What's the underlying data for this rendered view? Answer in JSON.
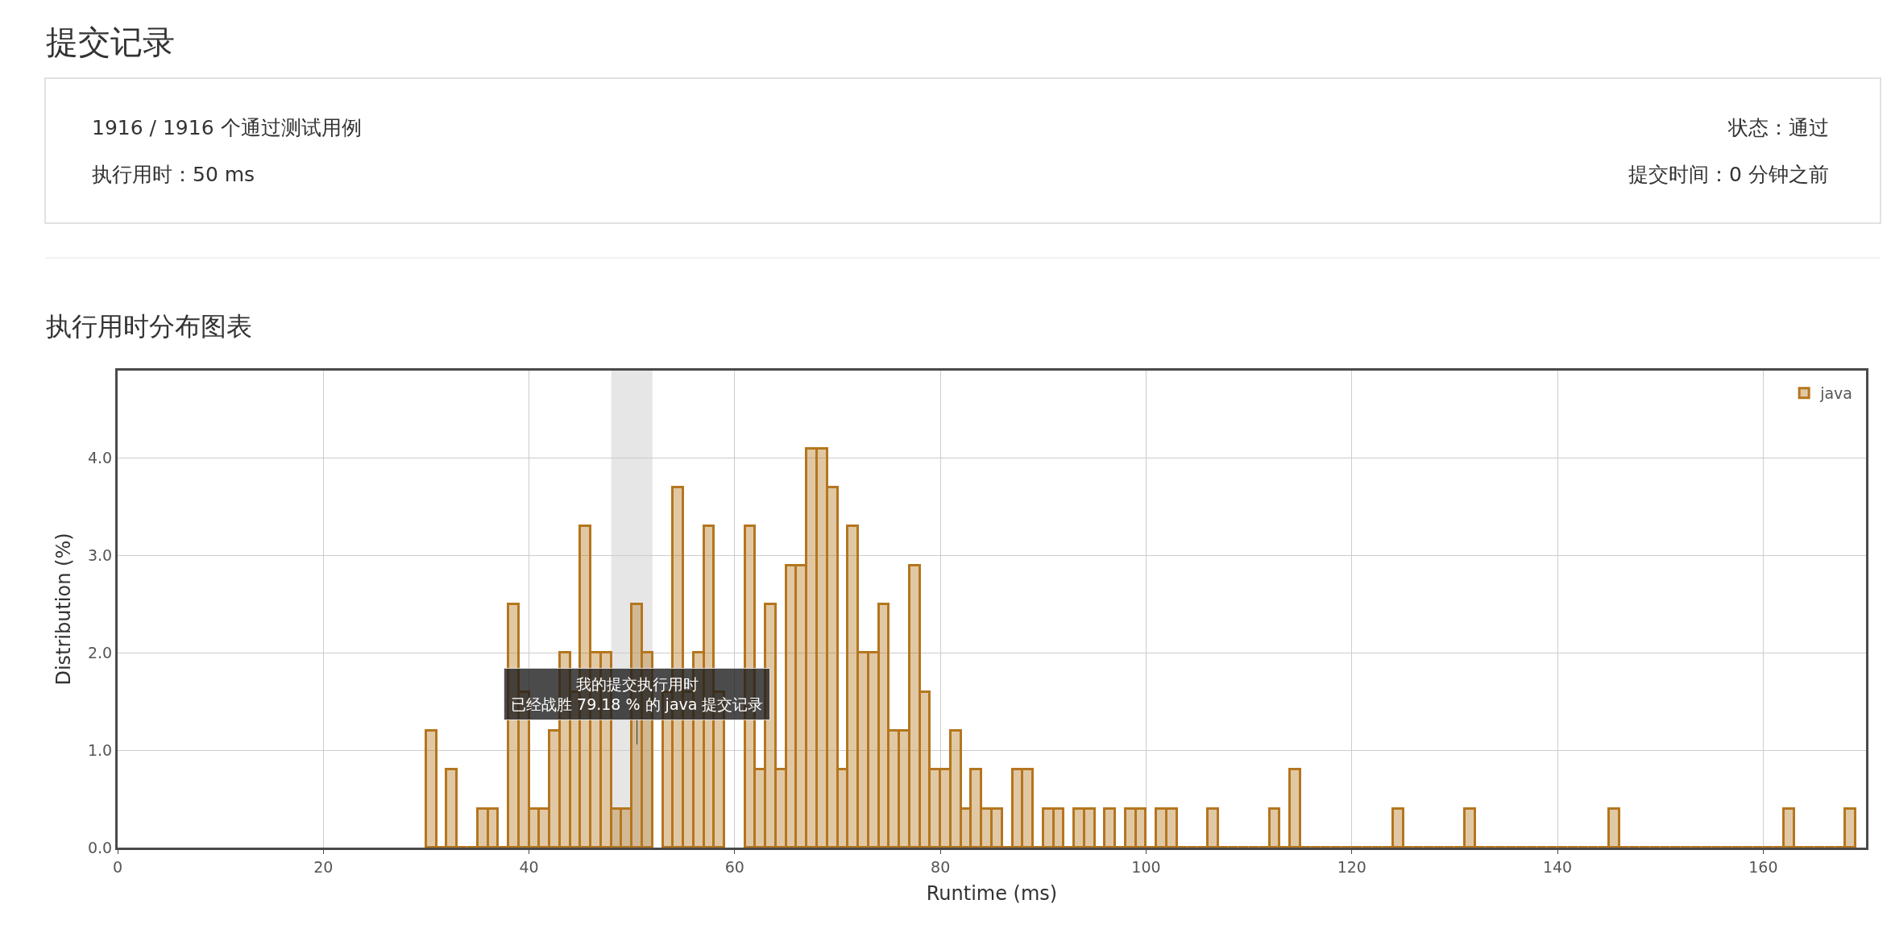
{
  "chart_data": [
    {
      "type": "other",
      "title": "提交记录",
      "annotations": [
        "1916 / 1916 个通过测试用例",
        "执行用时：50 ms",
        "状态：通过",
        "提交时间：0 分钟之前"
      ]
    },
    {
      "type": "histogram",
      "title": "执行用时分布图表",
      "xlabel": "Runtime (ms)",
      "ylabel": "Distribution (%)",
      "bins": [
        30,
        31,
        32,
        33,
        34,
        35,
        36,
        37,
        38,
        39,
        40,
        41,
        42,
        43,
        44,
        45,
        46,
        47,
        48,
        49,
        50,
        51,
        52,
        53,
        54,
        55,
        56,
        57,
        58,
        59,
        60,
        61,
        62,
        63,
        64,
        65,
        66,
        67,
        68,
        69,
        70,
        71,
        72,
        73,
        74,
        75,
        76,
        77,
        78,
        79,
        80,
        81,
        82,
        83,
        84,
        85,
        86,
        87,
        88,
        89,
        90,
        91,
        92,
        93,
        94,
        95,
        96,
        97,
        98,
        99,
        100,
        101,
        102,
        103,
        104,
        105,
        106,
        107,
        108,
        109,
        110,
        111,
        112,
        113,
        114,
        115,
        116,
        117,
        118,
        119,
        120,
        121,
        122,
        123,
        124,
        125,
        126,
        127,
        128,
        129,
        130,
        131,
        132,
        133,
        134,
        135,
        136,
        137,
        138,
        139,
        140,
        141,
        142,
        143,
        144,
        145,
        146,
        147,
        148,
        149,
        150,
        151,
        152,
        153,
        154,
        155,
        156,
        157,
        158,
        159,
        160,
        161,
        162,
        163,
        164,
        165,
        166,
        167,
        168,
        169
      ],
      "series": [
        {
          "name": "java",
          "color": "#b5761e",
          "values": [
            1.2,
            0,
            0.8,
            0,
            0,
            0.4,
            0.4,
            0,
            2.5,
            1.6,
            0.4,
            0.4,
            1.2,
            2.0,
            1.6,
            3.3,
            2.0,
            2.0,
            0.4,
            0.4,
            2.5,
            2.0,
            null,
            1.6,
            3.7,
            1.6,
            2.0,
            3.3,
            1.6,
            null,
            null,
            3.3,
            0.8,
            2.5,
            0.8,
            2.9,
            2.9,
            4.1,
            4.1,
            3.7,
            0.8,
            3.3,
            2.0,
            2.0,
            2.5,
            1.2,
            1.2,
            2.9,
            1.6,
            0.8,
            0.8,
            1.2,
            0.4,
            0.8,
            0.4,
            0.4,
            0,
            0.8,
            0.8,
            0,
            0.4,
            0.4,
            0,
            0.4,
            0.4,
            0,
            0.4,
            0,
            0.4,
            0.4,
            0,
            0.4,
            0.4,
            0,
            0,
            0,
            0.4,
            0,
            0,
            0,
            0,
            0,
            0.4,
            0,
            0.8,
            0,
            0,
            0,
            0,
            0,
            0,
            0,
            0,
            0,
            0.4,
            0,
            0,
            0,
            0,
            0,
            0,
            0.4,
            0,
            0,
            0,
            0,
            0,
            0,
            0,
            0,
            0,
            0,
            0,
            0,
            0,
            0.4,
            0,
            0,
            0,
            0,
            0,
            0,
            0,
            0,
            0,
            0,
            0,
            0,
            0,
            0,
            0,
            0,
            0.4,
            0,
            0,
            0,
            0,
            0,
            0.4
          ]
        }
      ],
      "xlim": [
        0,
        170
      ],
      "xticks": [
        0,
        20,
        40,
        60,
        80,
        100,
        120,
        140,
        160
      ],
      "ylim": [
        0,
        4.9
      ],
      "yticks": [
        {
          "value": 0,
          "label": "0.0"
        },
        {
          "value": 1,
          "label": "1.0"
        },
        {
          "value": 2,
          "label": "2.0"
        },
        {
          "value": 3,
          "label": "3.0"
        },
        {
          "value": 4,
          "label": "4.0"
        }
      ],
      "grid": true,
      "legend": "top right",
      "bands": [
        {
          "axis": "x",
          "from": 48,
          "to": 52,
          "color": "#e6e6e6"
        }
      ],
      "annotations": [
        "我的提交执行用时",
        {
          "text": "已经战胜 79.18 % 的 java 提交记录",
          "x": 50.5,
          "y": 1.06
        }
      ]
    }
  ]
}
